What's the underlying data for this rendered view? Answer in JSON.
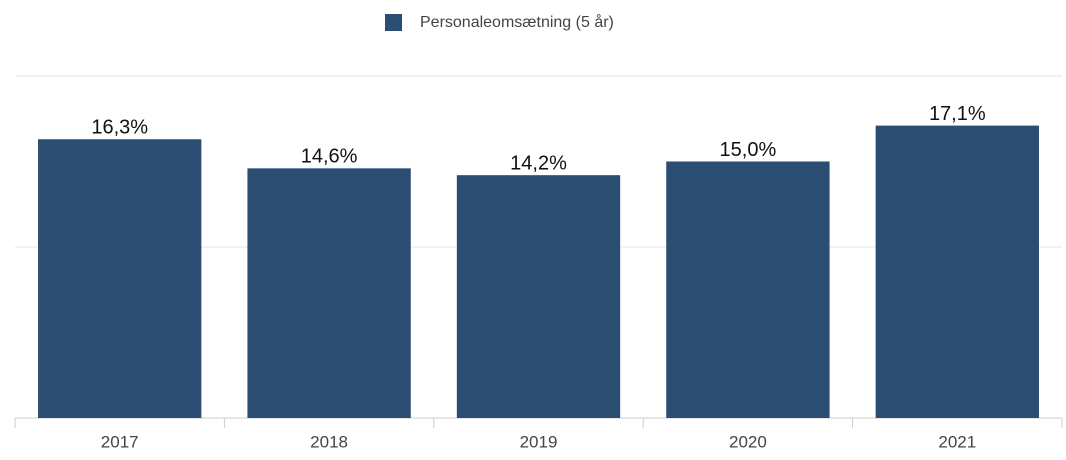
{
  "chart_data": {
    "type": "bar",
    "categories": [
      "2017",
      "2018",
      "2019",
      "2020",
      "2021"
    ],
    "series": [
      {
        "name": "Personaleomsætning (5 år)",
        "color": "#2b4d72",
        "values": [
          16.3,
          14.6,
          14.2,
          15.0,
          17.1
        ],
        "value_labels": [
          "16,3%",
          "14,6%",
          "14,2%",
          "15,0%",
          "17,1%"
        ]
      }
    ],
    "ylim": [
      0,
      20
    ],
    "yticks": [
      0,
      10,
      20
    ],
    "grid": true,
    "legend": "top"
  }
}
